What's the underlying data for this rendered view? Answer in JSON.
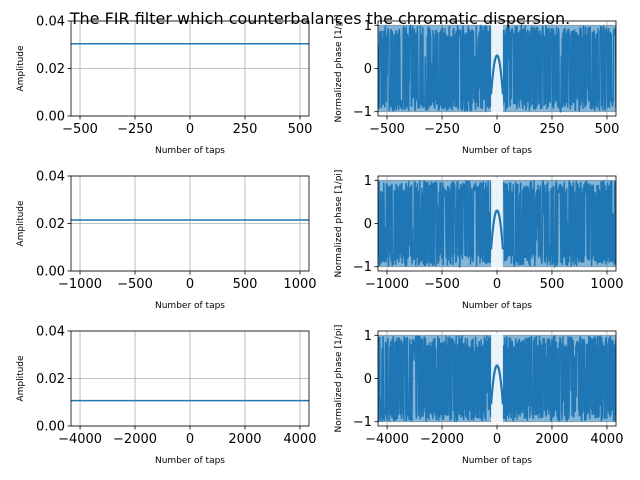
{
  "title": "The FIR filter which counterbalances the chromatic dispersion.",
  "colors": {
    "line": "#1f77b4",
    "grid": "#b0b0b0",
    "axes": "#000000"
  },
  "chart_data": [
    {
      "type": "line",
      "name": "amp1",
      "xlabel": "Number of taps",
      "ylabel": "Amplitude",
      "xlim": [
        -541,
        541
      ],
      "ylim": [
        0,
        0.04
      ],
      "xticks": [
        -500,
        -250,
        0,
        250,
        500
      ],
      "xtick_labels": [
        "−500",
        "−250",
        "0",
        "250",
        "500"
      ],
      "yticks": [
        0,
        0.02,
        0.04
      ],
      "ytick_labels": [
        "0.00",
        "0.02",
        "0.04"
      ],
      "grid": true,
      "series": [
        {
          "x": [
            -541,
            541
          ],
          "y": [
            0.0304,
            0.0304
          ]
        }
      ]
    },
    {
      "type": "line",
      "name": "phase1",
      "xlabel": "Number of taps",
      "ylabel": "Normalized phase [1/pi]",
      "xlim": [
        -541,
        541
      ],
      "ylim": [
        -1.1,
        1.1
      ],
      "xticks": [
        -500,
        -250,
        0,
        250,
        500
      ],
      "xtick_labels": [
        "−500",
        "−250",
        "0",
        "250",
        "500"
      ],
      "yticks": [
        -1,
        0,
        1
      ],
      "ytick_labels": [
        "−1",
        "0",
        "1"
      ],
      "grid": true,
      "series": [
        {
          "x_range": [
            -541,
            541
          ],
          "y_range": [
            -1,
            1
          ],
          "pattern": "wrapped-phase"
        }
      ]
    },
    {
      "type": "line",
      "name": "amp2",
      "xlabel": "Number of taps",
      "ylabel": "Amplitude",
      "xlim": [
        -1082,
        1082
      ],
      "ylim": [
        0,
        0.04
      ],
      "xticks": [
        -1000,
        -500,
        0,
        500,
        1000
      ],
      "xtick_labels": [
        "−1000",
        "−500",
        "0",
        "500",
        "1000"
      ],
      "yticks": [
        0,
        0.02,
        0.04
      ],
      "ytick_labels": [
        "0.00",
        "0.02",
        "0.04"
      ],
      "grid": true,
      "series": [
        {
          "x": [
            -1082,
            1082
          ],
          "y": [
            0.0215,
            0.0215
          ]
        }
      ]
    },
    {
      "type": "line",
      "name": "phase2",
      "xlabel": "Number of taps",
      "ylabel": "Normalized phase [1/pi]",
      "xlim": [
        -1082,
        1082
      ],
      "ylim": [
        -1.1,
        1.1
      ],
      "xticks": [
        -1000,
        -500,
        0,
        500,
        1000
      ],
      "xtick_labels": [
        "−1000",
        "−500",
        "0",
        "500",
        "1000"
      ],
      "yticks": [
        -1,
        0,
        1
      ],
      "ytick_labels": [
        "−1",
        "0",
        "1"
      ],
      "grid": true,
      "series": [
        {
          "x_range": [
            -1082,
            1082
          ],
          "y_range": [
            -1,
            1
          ],
          "pattern": "wrapped-phase"
        }
      ]
    },
    {
      "type": "line",
      "name": "amp3",
      "xlabel": "Number of taps",
      "ylabel": "Amplitude",
      "xlim": [
        -4330,
        4330
      ],
      "ylim": [
        0,
        0.04
      ],
      "xticks": [
        -4000,
        -2000,
        0,
        2000,
        4000
      ],
      "xtick_labels": [
        "−4000",
        "−2000",
        "0",
        "2000",
        "4000"
      ],
      "yticks": [
        0,
        0.02,
        0.04
      ],
      "ytick_labels": [
        "0.00",
        "0.02",
        "0.04"
      ],
      "grid": true,
      "series": [
        {
          "x": [
            -4330,
            4330
          ],
          "y": [
            0.0107,
            0.0107
          ]
        }
      ]
    },
    {
      "type": "line",
      "name": "phase3",
      "xlabel": "Number of taps",
      "ylabel": "Normalized phase [1/pi]",
      "xlim": [
        -4330,
        4330
      ],
      "ylim": [
        -1.1,
        1.1
      ],
      "xticks": [
        -4000,
        -2000,
        0,
        2000,
        4000
      ],
      "xtick_labels": [
        "−4000",
        "−2000",
        "0",
        "2000",
        "4000"
      ],
      "yticks": [
        -1,
        0,
        1
      ],
      "ytick_labels": [
        "−1",
        "0",
        "1"
      ],
      "grid": true,
      "series": [
        {
          "x_range": [
            -4330,
            4330
          ],
          "y_range": [
            -1,
            1
          ],
          "pattern": "wrapped-phase"
        }
      ]
    }
  ]
}
